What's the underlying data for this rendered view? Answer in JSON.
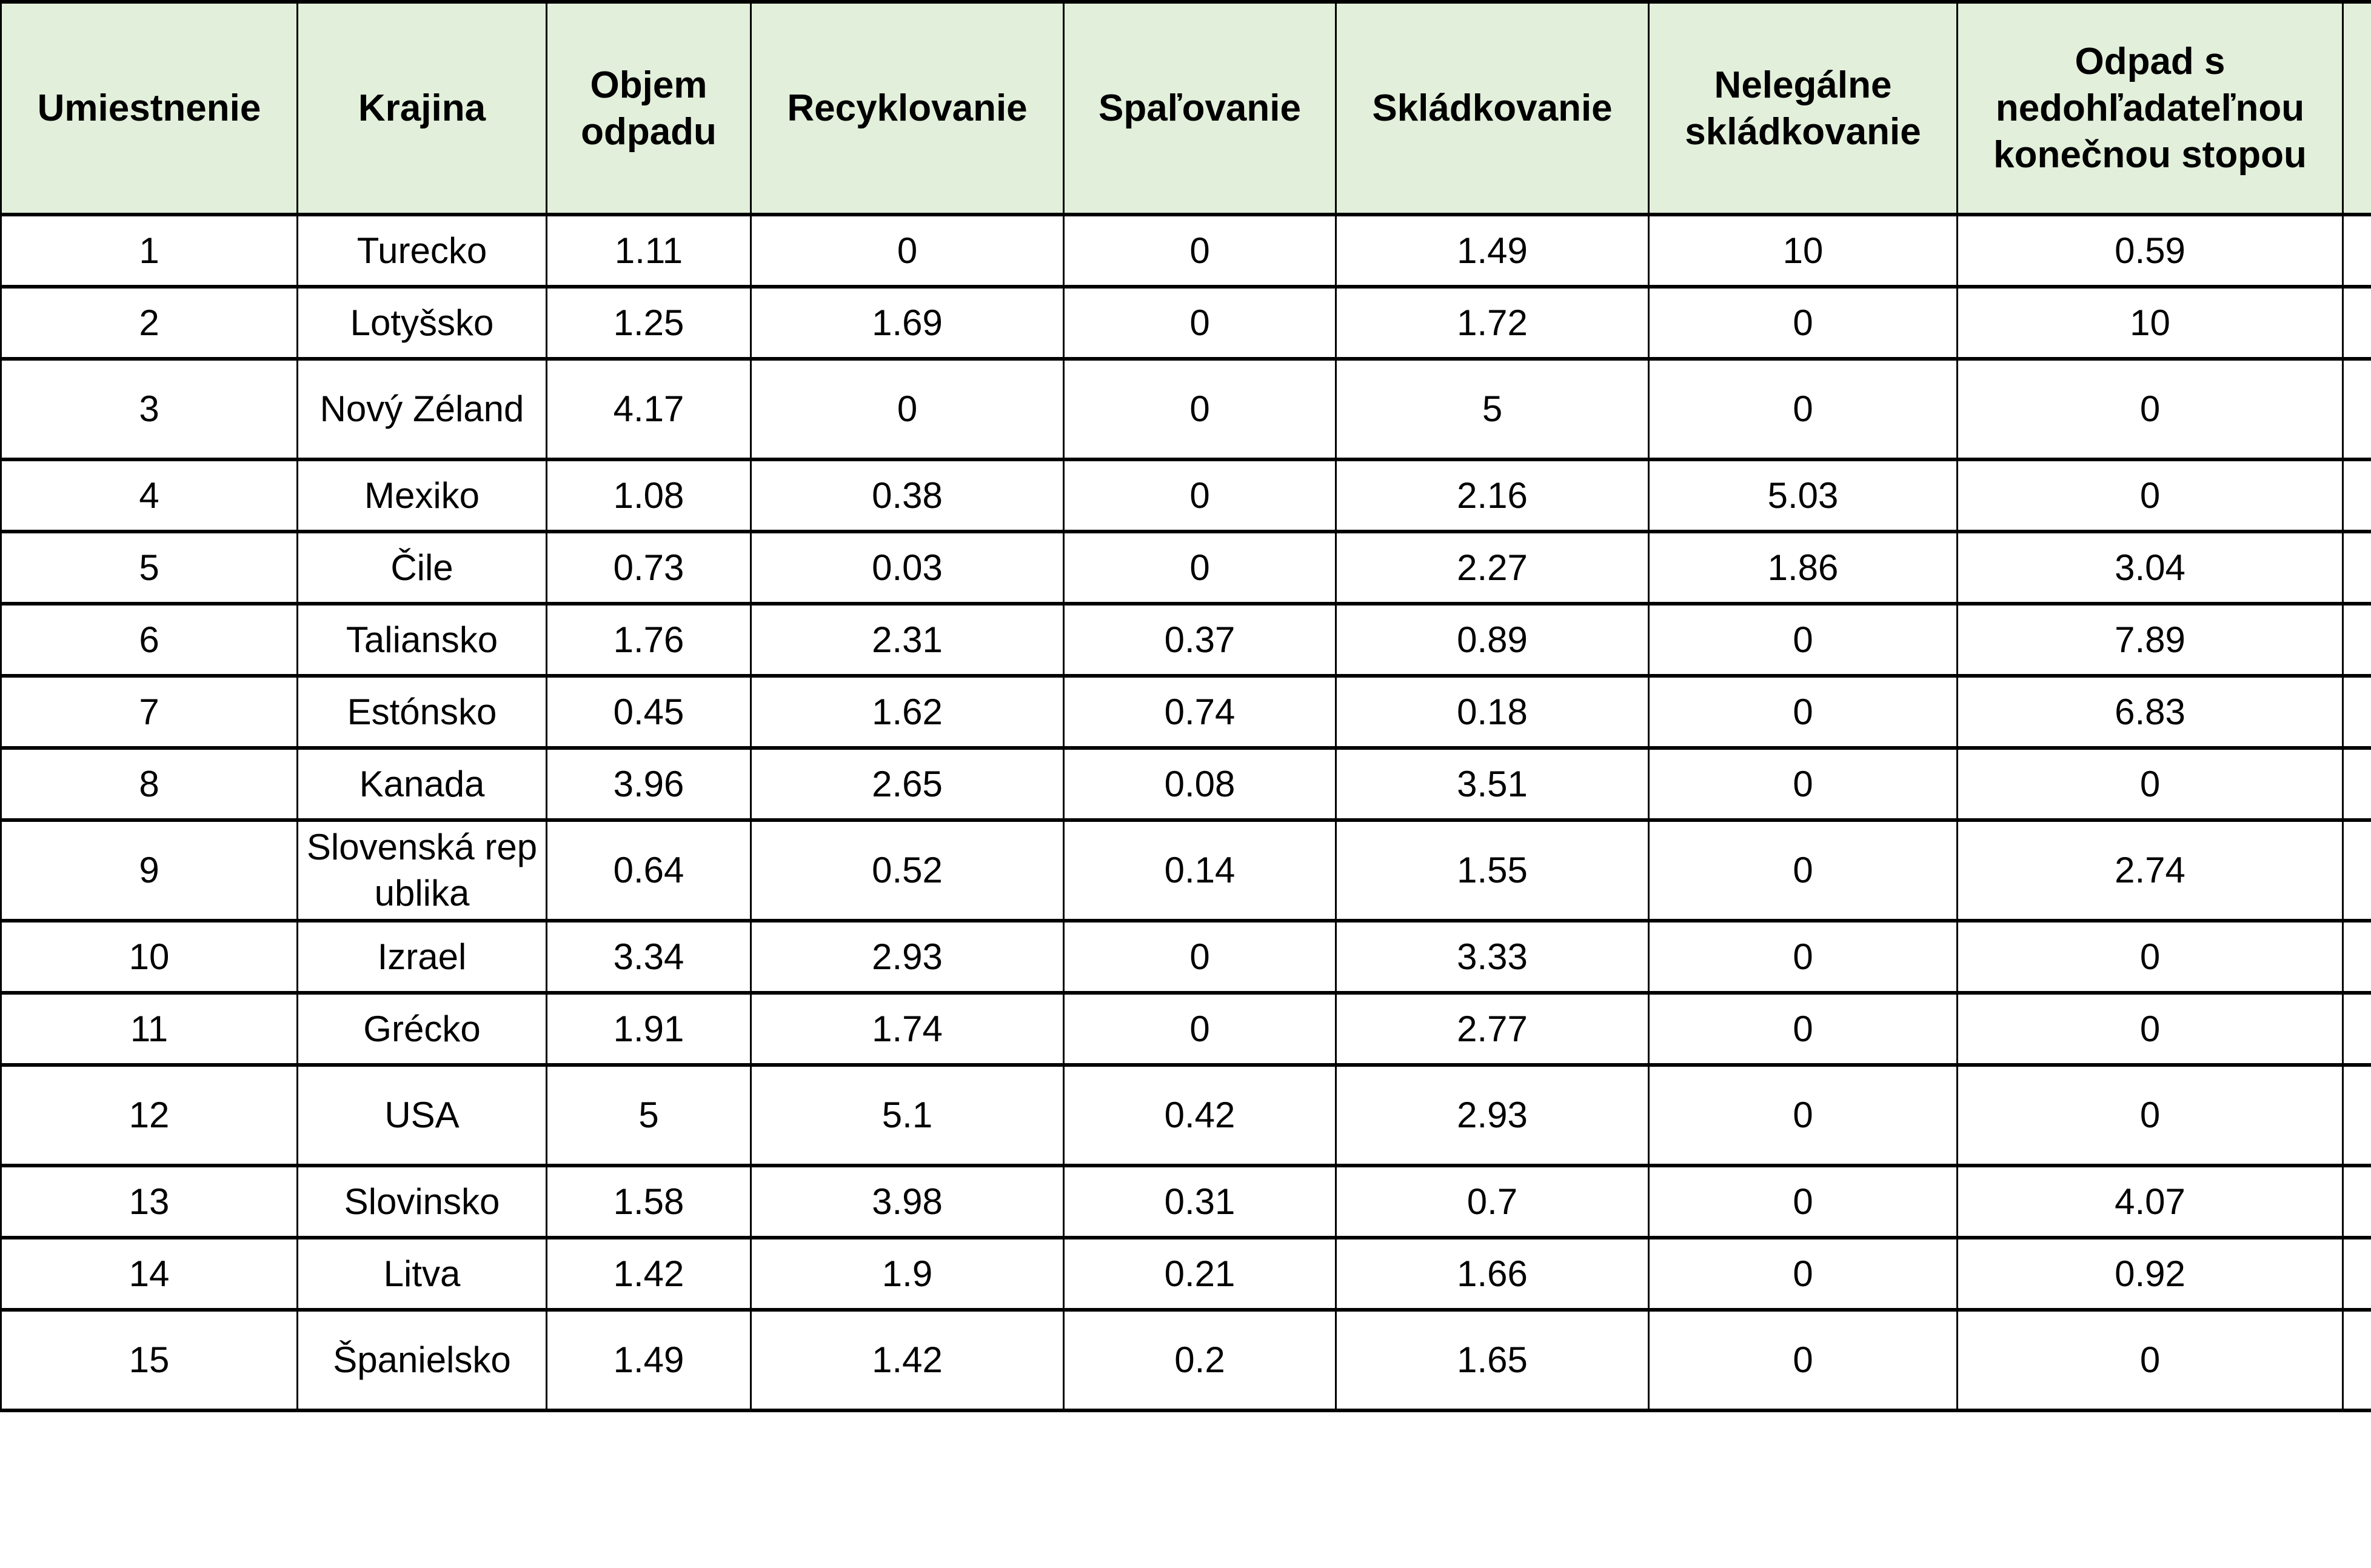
{
  "table": {
    "headers": [
      "Umiestnenie",
      "Krajina",
      "Objem odpadu",
      "Recyklovanie",
      "Spaľovanie",
      "Skládkovanie",
      "Nelegálne skládkovanie",
      "Odpad s nedohľadateľnou konečnou stopou",
      ""
    ],
    "rows": [
      [
        "1",
        "Turecko",
        "1.11",
        "0",
        "0",
        "1.49",
        "10",
        "0.59"
      ],
      [
        "2",
        "Lotyšsko",
        "1.25",
        "1.69",
        "0",
        "1.72",
        "0",
        "10"
      ],
      [
        "3",
        "Nový Zéland",
        "4.17",
        "0",
        "0",
        "5",
        "0",
        "0"
      ],
      [
        "4",
        "Mexiko",
        "1.08",
        "0.38",
        "0",
        "2.16",
        "5.03",
        "0"
      ],
      [
        "5",
        "Čile",
        "0.73",
        "0.03",
        "0",
        "2.27",
        "1.86",
        "3.04"
      ],
      [
        "6",
        "Taliansko",
        "1.76",
        "2.31",
        "0.37",
        "0.89",
        "0",
        "7.89"
      ],
      [
        "7",
        "Estónsko",
        "0.45",
        "1.62",
        "0.74",
        "0.18",
        "0",
        "6.83"
      ],
      [
        "8",
        "Kanada",
        "3.96",
        "2.65",
        "0.08",
        "3.51",
        "0",
        "0"
      ],
      [
        "9",
        "Slovenská republika",
        "0.64",
        "0.52",
        "0.14",
        "1.55",
        "0",
        "2.74"
      ],
      [
        "10",
        "Izrael",
        "3.34",
        "2.93",
        "0",
        "3.33",
        "0",
        "0"
      ],
      [
        "11",
        "Grécko",
        "1.91",
        "1.74",
        "0",
        "2.77",
        "0",
        "0"
      ],
      [
        "12",
        "USA",
        "5",
        "5.1",
        "0.42",
        "2.93",
        "0",
        "0"
      ],
      [
        "13",
        "Slovinsko",
        "1.58",
        "3.98",
        "0.31",
        "0.7",
        "0",
        "4.07"
      ],
      [
        "14",
        "Litva",
        "1.42",
        "1.9",
        "0.21",
        "1.66",
        "0",
        "0.92"
      ],
      [
        "15",
        "Španielsko",
        "1.49",
        "1.42",
        "0.2",
        "1.65",
        "0",
        "0"
      ]
    ]
  }
}
